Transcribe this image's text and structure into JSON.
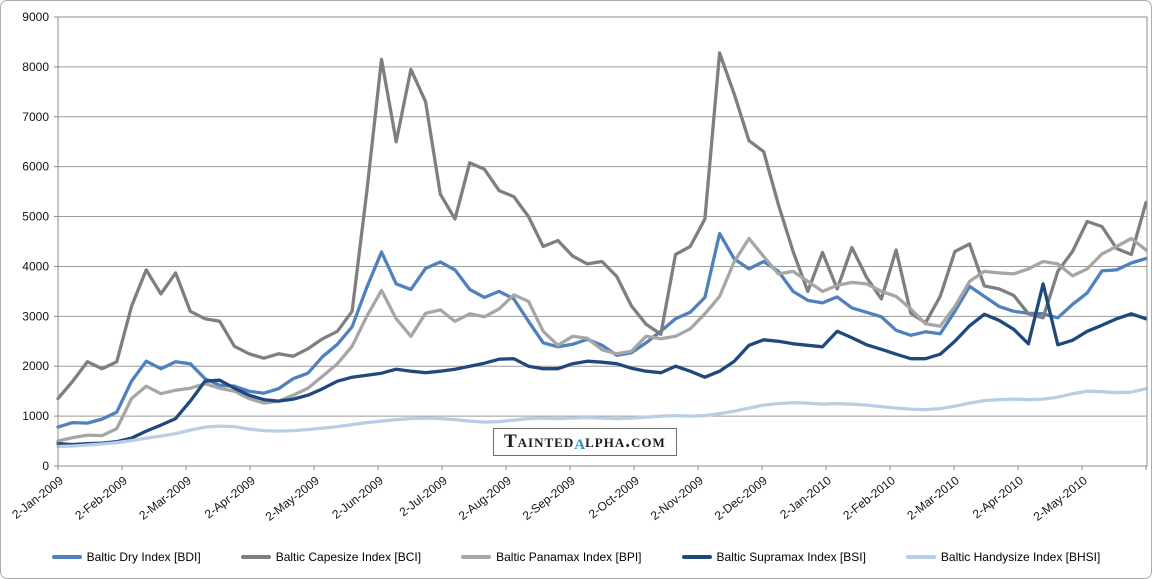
{
  "chart_data": {
    "type": "line",
    "title": "",
    "grid": "horizontal",
    "legend_position": "bottom",
    "sampling": "weekly (digitized estimates)",
    "x_range_label": "2-Jan-2009 to early Jun-2010",
    "x_tick_labels": [
      "2-Jan-2009",
      "2-Feb-2009",
      "2-Mar-2009",
      "2-Apr-2009",
      "2-May-2009",
      "2-Jun-2009",
      "2-Jul-2009",
      "2-Aug-2009",
      "2-Sep-2009",
      "2-Oct-2009",
      "2-Nov-2009",
      "2-Dec-2009",
      "2-Jan-2010",
      "2-Feb-2010",
      "2-Mar-2010",
      "2-Apr-2010",
      "2-May-2010"
    ],
    "ylim": [
      0,
      9000
    ],
    "y_ticks": [
      0,
      1000,
      2000,
      3000,
      4000,
      5000,
      6000,
      7000,
      8000,
      9000
    ],
    "series": [
      {
        "name": "Baltic Dry Index [BDI]",
        "color": "#4f81bd",
        "values": [
          780,
          870,
          860,
          940,
          1080,
          1700,
          2100,
          1950,
          2090,
          2050,
          1750,
          1620,
          1600,
          1500,
          1460,
          1550,
          1750,
          1860,
          2190,
          2440,
          2790,
          3580,
          4290,
          3650,
          3540,
          3960,
          4090,
          3930,
          3540,
          3380,
          3500,
          3350,
          2900,
          2470,
          2390,
          2440,
          2540,
          2420,
          2220,
          2270,
          2470,
          2700,
          2950,
          3080,
          3380,
          4660,
          4150,
          3950,
          4100,
          3900,
          3500,
          3320,
          3270,
          3390,
          3170,
          3080,
          2990,
          2720,
          2620,
          2690,
          2650,
          3100,
          3600,
          3400,
          3200,
          3100,
          3060,
          3050,
          2970,
          3240,
          3470,
          3910,
          3930,
          4070,
          4160
        ]
      },
      {
        "name": "Baltic Capesize Index [BCI]",
        "color": "#7f7f7f",
        "values": [
          1350,
          1700,
          2090,
          1950,
          2090,
          3200,
          3930,
          3450,
          3870,
          3100,
          2950,
          2900,
          2400,
          2250,
          2160,
          2250,
          2200,
          2350,
          2550,
          2700,
          3100,
          5500,
          8150,
          6500,
          7950,
          7300,
          5450,
          4950,
          6080,
          5950,
          5520,
          5400,
          5000,
          4400,
          4520,
          4210,
          4050,
          4100,
          3800,
          3210,
          2840,
          2640,
          4240,
          4400,
          4950,
          8280,
          7450,
          6520,
          6300,
          5240,
          4300,
          3500,
          4280,
          3550,
          4380,
          3780,
          3350,
          4330,
          3060,
          2870,
          3400,
          4300,
          4450,
          3610,
          3550,
          3420,
          3050,
          2970,
          3900,
          4300,
          4900,
          4800,
          4360,
          4240,
          5280
        ]
      },
      {
        "name": "Baltic Panamax Index [BPI]",
        "color": "#a6a6a6",
        "values": [
          500,
          570,
          620,
          610,
          750,
          1350,
          1600,
          1450,
          1520,
          1560,
          1650,
          1560,
          1500,
          1350,
          1260,
          1300,
          1420,
          1560,
          1800,
          2050,
          2400,
          3000,
          3520,
          2950,
          2600,
          3060,
          3130,
          2900,
          3050,
          2990,
          3150,
          3430,
          3300,
          2700,
          2420,
          2600,
          2560,
          2330,
          2250,
          2300,
          2600,
          2550,
          2600,
          2750,
          3050,
          3400,
          4100,
          4560,
          4200,
          3850,
          3900,
          3700,
          3500,
          3620,
          3680,
          3650,
          3500,
          3400,
          3150,
          2850,
          2800,
          3200,
          3700,
          3900,
          3870,
          3850,
          3950,
          4100,
          4050,
          3810,
          3950,
          4250,
          4400,
          4560,
          4330
        ]
      },
      {
        "name": "Baltic Supramax Index [BSI]",
        "color": "#1f497d",
        "values": [
          450,
          430,
          450,
          460,
          490,
          560,
          700,
          820,
          950,
          1300,
          1700,
          1720,
          1560,
          1420,
          1330,
          1300,
          1340,
          1420,
          1550,
          1700,
          1780,
          1820,
          1860,
          1940,
          1900,
          1870,
          1900,
          1940,
          2000,
          2060,
          2140,
          2150,
          2000,
          1950,
          1950,
          2050,
          2100,
          2080,
          2050,
          1960,
          1900,
          1870,
          2000,
          1900,
          1780,
          1900,
          2100,
          2420,
          2530,
          2500,
          2450,
          2420,
          2390,
          2700,
          2570,
          2430,
          2340,
          2240,
          2150,
          2150,
          2240,
          2500,
          2810,
          3040,
          2920,
          2740,
          2450,
          3650,
          2430,
          2520,
          2700,
          2820,
          2950,
          3050,
          2950
        ]
      },
      {
        "name": "Baltic Handysize Index [BHSI]",
        "color": "#b9cde5",
        "values": [
          390,
          400,
          420,
          440,
          470,
          510,
          560,
          600,
          650,
          720,
          780,
          800,
          790,
          740,
          710,
          700,
          710,
          730,
          760,
          790,
          830,
          870,
          900,
          930,
          950,
          960,
          950,
          930,
          900,
          880,
          890,
          920,
          950,
          960,
          950,
          960,
          970,
          960,
          950,
          960,
          980,
          1000,
          1010,
          1000,
          1010,
          1050,
          1100,
          1160,
          1220,
          1250,
          1270,
          1260,
          1240,
          1250,
          1240,
          1220,
          1190,
          1160,
          1140,
          1130,
          1150,
          1200,
          1260,
          1310,
          1330,
          1340,
          1330,
          1340,
          1380,
          1450,
          1500,
          1490,
          1470,
          1480,
          1550
        ]
      }
    ],
    "annotations": [
      "BSI shows a brief one-day spike to ~3650 in late April 2010"
    ]
  },
  "watermark": {
    "prefix": "Tainted",
    "alpha": "α",
    "suffix": "lpha.com",
    "alpha_color": "#2095d0"
  },
  "colors": {
    "gridline": "#9c9c9c",
    "plot_border": "#8c8c8c",
    "tick": "#8c8c8c",
    "label": "#141414",
    "frame_border": "#adadad"
  }
}
